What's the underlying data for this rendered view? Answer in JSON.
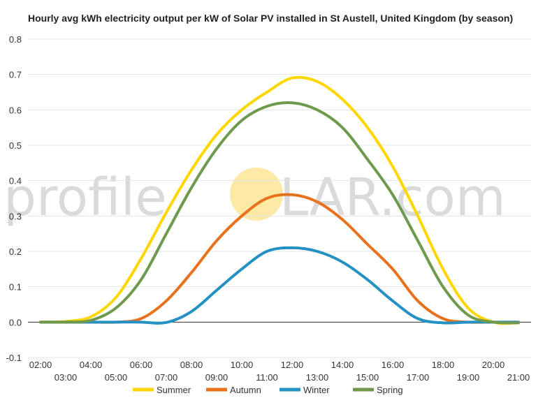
{
  "chart_data": {
    "type": "line",
    "title": "Hourly avg kWh electricity output per kW of Solar PV installed in St Austell, United Kingdom (by season)",
    "xlabel": "",
    "ylabel": "",
    "ylim": [
      -0.1,
      0.8
    ],
    "yticks": [
      -0.1,
      0.0,
      0.1,
      0.2,
      0.3,
      0.4,
      0.5,
      0.6,
      0.7,
      0.8
    ],
    "ytick_labels": [
      "-0.1",
      "0.0",
      "0.1",
      "0.2",
      "0.3",
      "0.4",
      "0.5",
      "0.6",
      "0.7",
      "0.8"
    ],
    "xlim": [
      1.5,
      21.5
    ],
    "xticks": [
      2,
      3,
      4,
      5,
      6,
      7,
      8,
      9,
      10,
      11,
      12,
      13,
      14,
      15,
      16,
      17,
      18,
      19,
      20,
      21
    ],
    "xtick_labels": [
      "02:00",
      "03:00",
      "04:00",
      "05:00",
      "06:00",
      "07:00",
      "08:00",
      "09:00",
      "10:00",
      "11:00",
      "12:00",
      "13:00",
      "14:00",
      "15:00",
      "16:00",
      "17:00",
      "18:00",
      "19:00",
      "20:00",
      "21:00"
    ],
    "grid": true,
    "legend_position": "bottom",
    "x": [
      2,
      3,
      4,
      5,
      6,
      7,
      8,
      9,
      10,
      11,
      12,
      13,
      14,
      15,
      16,
      17,
      18,
      19,
      20,
      21
    ],
    "series": [
      {
        "name": "Summer",
        "color": "#FFD700",
        "values": [
          0.0,
          0.002,
          0.015,
          0.07,
          0.18,
          0.31,
          0.43,
          0.53,
          0.6,
          0.65,
          0.69,
          0.68,
          0.63,
          0.55,
          0.44,
          0.3,
          0.15,
          0.04,
          0.0,
          -0.002
        ]
      },
      {
        "name": "Autumn",
        "color": "#E8721C",
        "values": [
          0.0,
          0.0,
          0.0,
          0.0,
          0.01,
          0.06,
          0.14,
          0.23,
          0.3,
          0.35,
          0.36,
          0.34,
          0.29,
          0.22,
          0.15,
          0.06,
          0.01,
          0.0,
          0.0,
          0.0
        ]
      },
      {
        "name": "Winter",
        "color": "#2491C4",
        "values": [
          0.0,
          0.0,
          0.0,
          0.0,
          0.0,
          -0.001,
          0.03,
          0.09,
          0.15,
          0.2,
          0.21,
          0.2,
          0.17,
          0.12,
          0.06,
          0.01,
          -0.002,
          0.0,
          0.0,
          0.0
        ]
      },
      {
        "name": "Spring",
        "color": "#6F9A4E",
        "values": [
          0.0,
          0.0,
          0.005,
          0.04,
          0.12,
          0.25,
          0.38,
          0.49,
          0.57,
          0.61,
          0.62,
          0.6,
          0.55,
          0.46,
          0.36,
          0.23,
          0.1,
          0.02,
          0.0,
          -0.002
        ]
      }
    ]
  },
  "watermark": {
    "text_left": "profile",
    "text_right": "LAR.com",
    "sun_color": "#FDE9A6"
  }
}
